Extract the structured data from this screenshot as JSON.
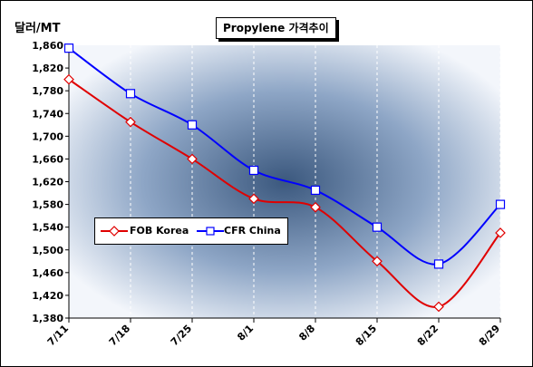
{
  "chart_data": {
    "type": "line",
    "title": "Propylene 가격추이",
    "ylabel": "달러/MT",
    "categories": [
      "7/11",
      "7/18",
      "7/25",
      "8/1",
      "8/8",
      "8/15",
      "8/22",
      "8/29"
    ],
    "ylim": [
      1380,
      1860
    ],
    "yticks": [
      "1,860",
      "1,820",
      "1,780",
      "1,740",
      "1,700",
      "1,660",
      "1,620",
      "1,580",
      "1,540",
      "1,500",
      "1,460",
      "1,420",
      "1,380"
    ],
    "grid": true,
    "legend_position": "lower-left",
    "series": [
      {
        "name": "FOB Korea",
        "color": "#e00000",
        "marker": "diamond",
        "values": [
          1800,
          1725,
          1660,
          1590,
          1575,
          1480,
          1400,
          1530
        ]
      },
      {
        "name": "CFR China",
        "color": "#0000ff",
        "marker": "square",
        "values": [
          1855,
          1775,
          1720,
          1640,
          1605,
          1540,
          1475,
          1580
        ]
      }
    ]
  },
  "colors": {
    "plot_center": "#3d5a80",
    "plot_edge": "#f2f5fa",
    "axis": "#000000",
    "grid": "#ffffff"
  }
}
